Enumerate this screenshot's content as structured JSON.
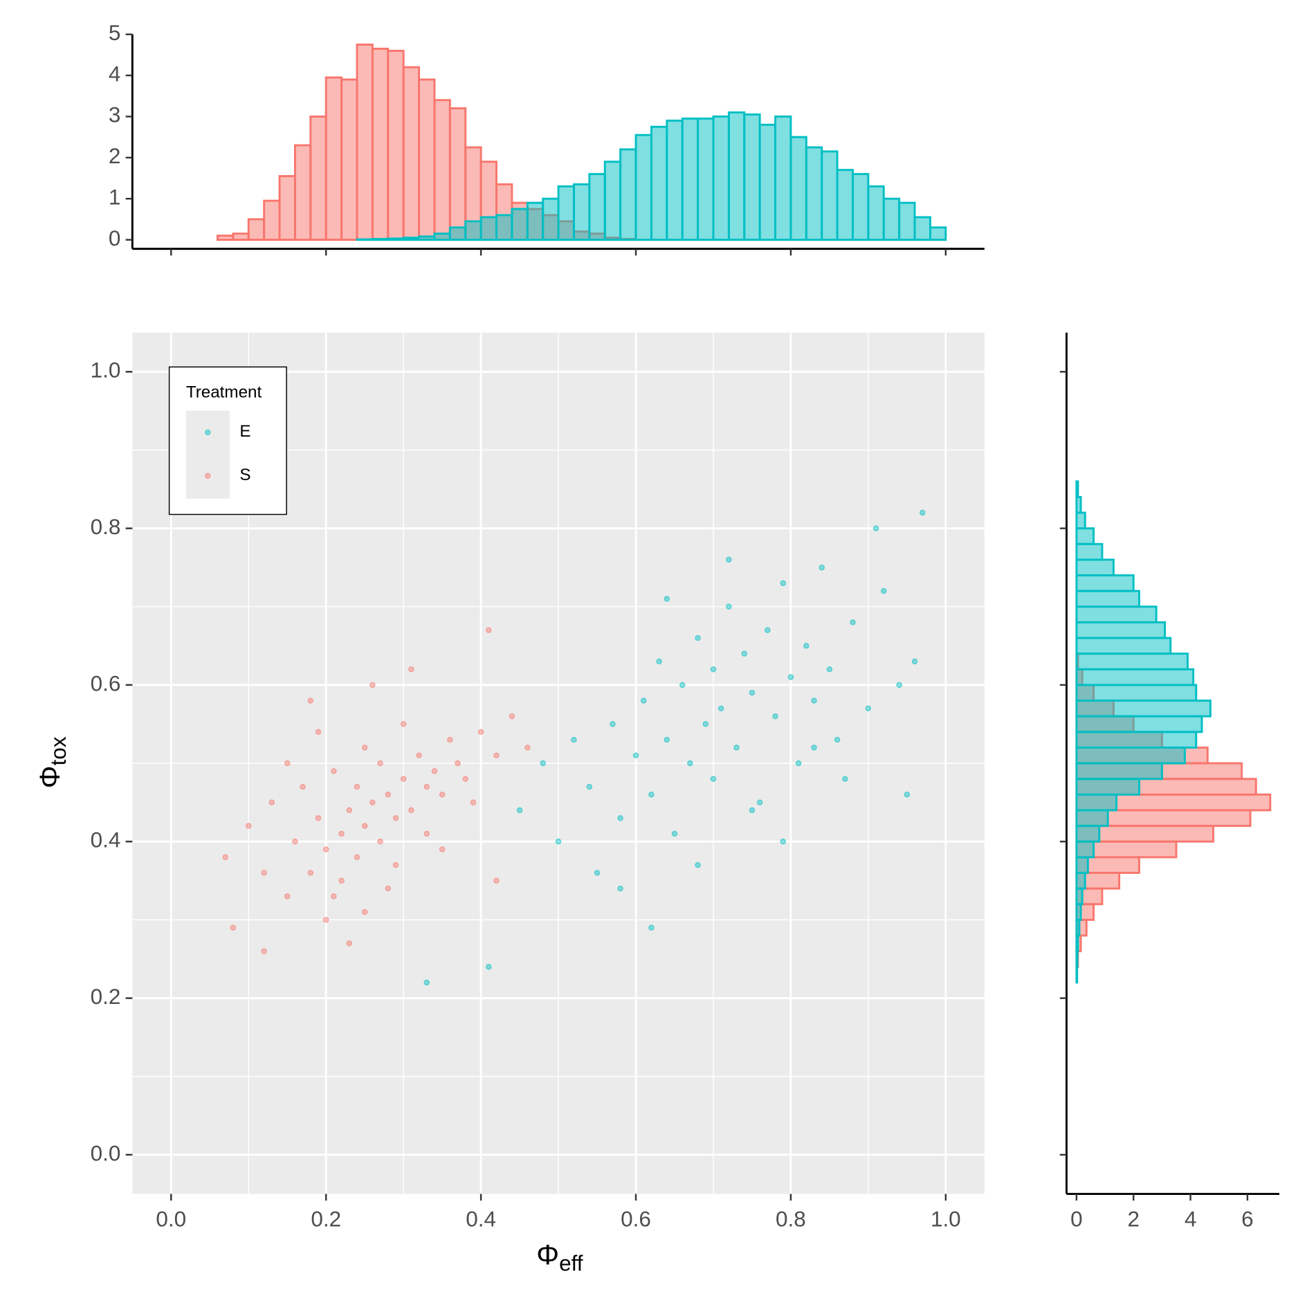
{
  "chart_data": [
    {
      "type": "scatter",
      "xlabel": [
        "Φ",
        "eff"
      ],
      "ylabel": [
        "Φ",
        "tox"
      ],
      "xlim": [
        -0.05,
        1.05
      ],
      "ylim": [
        -0.05,
        1.05
      ],
      "xticks": [
        {
          "value": 0,
          "label": "0.0"
        },
        0.2,
        0.4,
        0.6,
        0.8,
        {
          "value": 1,
          "label": "1.0"
        }
      ],
      "yticks": [
        {
          "value": 0,
          "label": "0.0"
        },
        0.2,
        0.4,
        0.6,
        0.8,
        {
          "value": 1,
          "label": "1.0"
        }
      ],
      "minor_xticks": [
        0.1,
        0.3,
        0.5,
        0.7,
        0.9
      ],
      "minor_yticks": [
        0.1,
        0.3,
        0.5,
        0.7,
        0.9
      ],
      "grid": true,
      "legend": {
        "title": "Treatment",
        "position": "top-left"
      },
      "series": [
        {
          "name": "E",
          "color": "#00BFC4",
          "x": [
            0.45,
            0.48,
            0.5,
            0.52,
            0.54,
            0.55,
            0.57,
            0.58,
            0.6,
            0.61,
            0.62,
            0.63,
            0.64,
            0.65,
            0.66,
            0.67,
            0.68,
            0.69,
            0.7,
            0.7,
            0.71,
            0.72,
            0.73,
            0.74,
            0.75,
            0.76,
            0.77,
            0.78,
            0.79,
            0.8,
            0.81,
            0.82,
            0.83,
            0.84,
            0.85,
            0.86,
            0.88,
            0.9,
            0.92,
            0.94,
            0.96,
            0.97,
            0.33,
            0.41,
            0.62,
            0.68,
            0.72,
            0.79,
            0.87,
            0.91,
            0.58,
            0.64,
            0.75,
            0.83,
            0.95
          ],
          "y": [
            0.44,
            0.5,
            0.4,
            0.53,
            0.47,
            0.36,
            0.55,
            0.43,
            0.51,
            0.58,
            0.46,
            0.63,
            0.53,
            0.41,
            0.6,
            0.5,
            0.66,
            0.55,
            0.48,
            0.62,
            0.57,
            0.7,
            0.52,
            0.64,
            0.59,
            0.45,
            0.67,
            0.56,
            0.73,
            0.61,
            0.5,
            0.65,
            0.58,
            0.75,
            0.62,
            0.53,
            0.68,
            0.57,
            0.72,
            0.6,
            0.63,
            0.82,
            0.22,
            0.24,
            0.29,
            0.37,
            0.76,
            0.4,
            0.48,
            0.8,
            0.34,
            0.71,
            0.44,
            0.52,
            0.46
          ]
        },
        {
          "name": "S",
          "color": "#F8766D",
          "x": [
            0.07,
            0.08,
            0.1,
            0.12,
            0.13,
            0.15,
            0.16,
            0.17,
            0.18,
            0.19,
            0.2,
            0.2,
            0.21,
            0.22,
            0.22,
            0.23,
            0.24,
            0.24,
            0.25,
            0.25,
            0.26,
            0.27,
            0.27,
            0.28,
            0.29,
            0.3,
            0.3,
            0.31,
            0.32,
            0.33,
            0.34,
            0.35,
            0.36,
            0.37,
            0.38,
            0.39,
            0.4,
            0.42,
            0.44,
            0.46,
            0.18,
            0.21,
            0.26,
            0.29,
            0.33,
            0.15,
            0.23,
            0.28,
            0.35,
            0.19,
            0.41,
            0.42,
            0.12,
            0.31,
            0.25
          ],
          "y": [
            0.38,
            0.29,
            0.42,
            0.26,
            0.45,
            0.33,
            0.4,
            0.47,
            0.36,
            0.43,
            0.39,
            0.3,
            0.49,
            0.41,
            0.35,
            0.44,
            0.47,
            0.38,
            0.42,
            0.52,
            0.45,
            0.4,
            0.5,
            0.46,
            0.43,
            0.48,
            0.55,
            0.44,
            0.51,
            0.47,
            0.49,
            0.46,
            0.53,
            0.5,
            0.48,
            0.45,
            0.54,
            0.51,
            0.56,
            0.52,
            0.58,
            0.33,
            0.6,
            0.37,
            0.41,
            0.5,
            0.27,
            0.34,
            0.39,
            0.54,
            0.67,
            0.35,
            0.36,
            0.62,
            0.31
          ]
        }
      ]
    },
    {
      "type": "histogram",
      "orientation": "vertical",
      "xlim": [
        -0.05,
        1.05
      ],
      "ylim": [
        -0.22,
        5
      ],
      "xticks": [
        0,
        0.2,
        0.4,
        0.6,
        0.8,
        1
      ],
      "xtick_labels": false,
      "yticks": [
        0,
        1,
        2,
        3,
        4,
        5
      ],
      "bins": [
        0.06,
        0.08,
        0.1,
        0.12,
        0.14,
        0.16,
        0.18,
        0.2,
        0.22,
        0.24,
        0.26,
        0.28,
        0.3,
        0.32,
        0.34,
        0.36,
        0.38,
        0.4,
        0.42,
        0.44,
        0.46,
        0.48,
        0.5,
        0.52,
        0.54,
        0.56,
        0.58,
        0.6,
        0.62,
        0.64,
        0.66,
        0.68,
        0.7,
        0.72,
        0.74,
        0.76,
        0.78,
        0.8,
        0.82,
        0.84,
        0.86,
        0.88,
        0.9,
        0.92,
        0.94,
        0.96,
        0.98,
        1.0
      ],
      "series": [
        {
          "name": "S",
          "color": "#F8766D",
          "values": [
            0.1,
            0.15,
            0.5,
            0.95,
            1.55,
            2.3,
            3.0,
            3.95,
            3.9,
            4.75,
            4.65,
            4.6,
            4.2,
            3.9,
            3.4,
            3.2,
            2.25,
            1.9,
            1.35,
            0.9,
            0.75,
            0.6,
            0.45,
            0.2,
            0.15,
            0.05,
            0.02,
            0,
            0,
            0,
            0,
            0,
            0,
            0,
            0,
            0,
            0,
            0,
            0,
            0,
            0,
            0,
            0,
            0,
            0,
            0,
            0
          ]
        },
        {
          "name": "E",
          "color": "#00BFC4",
          "values": [
            0,
            0,
            0,
            0,
            0,
            0,
            0,
            0,
            0,
            0.01,
            0.02,
            0.03,
            0.05,
            0.08,
            0.15,
            0.3,
            0.45,
            0.55,
            0.6,
            0.75,
            0.9,
            1.0,
            1.3,
            1.35,
            1.6,
            1.9,
            2.2,
            2.55,
            2.75,
            2.9,
            2.95,
            2.95,
            3.0,
            3.1,
            3.05,
            2.8,
            3.0,
            2.5,
            2.25,
            2.15,
            1.7,
            1.6,
            1.3,
            1.0,
            0.9,
            0.55,
            0.3
          ]
        }
      ]
    },
    {
      "type": "histogram",
      "orientation": "horizontal",
      "xlim": [
        -0.35,
        7.12
      ],
      "ylim": [
        -0.05,
        1.05
      ],
      "xticks": [
        0,
        2,
        4,
        6
      ],
      "yticks": [
        0,
        0.2,
        0.4,
        0.6,
        0.8,
        1
      ],
      "ytick_labels": false,
      "bins": [
        0.22,
        0.24,
        0.26,
        0.28,
        0.3,
        0.32,
        0.34,
        0.36,
        0.38,
        0.4,
        0.42,
        0.44,
        0.46,
        0.48,
        0.5,
        0.52,
        0.54,
        0.56,
        0.58,
        0.6,
        0.62,
        0.64,
        0.66,
        0.68,
        0.7,
        0.72,
        0.74,
        0.76,
        0.78,
        0.8,
        0.82,
        0.84,
        0.86
      ],
      "series": [
        {
          "name": "S",
          "color": "#F8766D",
          "values": [
            0,
            0.05,
            0.15,
            0.35,
            0.6,
            0.9,
            1.5,
            2.2,
            3.5,
            4.8,
            6.1,
            6.8,
            6.3,
            5.8,
            4.6,
            3.0,
            2.0,
            1.3,
            0.6,
            0.2,
            0.05,
            0,
            0,
            0,
            0,
            0,
            0,
            0,
            0,
            0,
            0,
            0
          ]
        },
        {
          "name": "E",
          "color": "#00BFC4",
          "values": [
            0.02,
            0.03,
            0.05,
            0.1,
            0.15,
            0.2,
            0.3,
            0.4,
            0.6,
            0.8,
            1.1,
            1.4,
            2.2,
            3.0,
            3.8,
            4.2,
            4.4,
            4.7,
            4.2,
            4.1,
            3.9,
            3.3,
            3.1,
            2.8,
            2.2,
            2.0,
            1.3,
            0.9,
            0.6,
            0.3,
            0.15,
            0.05
          ]
        }
      ]
    }
  ]
}
